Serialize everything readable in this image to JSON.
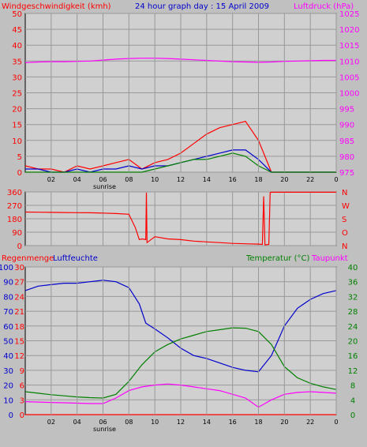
{
  "chart_data": [
    {
      "type": "line",
      "title": "24 hour graph day : 15 April 2009",
      "left_label": "Windgeschwindigkeit (kmh)",
      "right_label": "Luftdruck (hPa)",
      "left_ticks": [
        "0",
        "5",
        "10",
        "15",
        "20",
        "25",
        "30",
        "35",
        "40",
        "45",
        "50"
      ],
      "right_ticks": [
        "975",
        "980",
        "985",
        "990",
        "995",
        "1000",
        "1005",
        "1010",
        "1015",
        "1020",
        "1025"
      ],
      "x_ticks": [
        "02",
        "04",
        "06",
        "08",
        "10",
        "12",
        "14",
        "16",
        "18",
        "20",
        "22",
        "0"
      ],
      "sunrise_label": "sunrise",
      "ylim_left": [
        0,
        50
      ],
      "ylim_right": [
        975,
        1025
      ],
      "xlim": [
        0,
        24
      ],
      "series": [
        {
          "color": "#ff00ff",
          "x": [
            0,
            1,
            2,
            3,
            4,
            5,
            6,
            7,
            8,
            9,
            10,
            11,
            12,
            13,
            14,
            15,
            16,
            17,
            18,
            19,
            20,
            21,
            22,
            23,
            24
          ],
          "values": [
            1009.5,
            1009.7,
            1009.8,
            1009.8,
            1009.9,
            1010,
            1010.3,
            1010.6,
            1010.8,
            1010.9,
            1010.9,
            1010.8,
            1010.6,
            1010.4,
            1010.2,
            1010,
            1009.8,
            1009.7,
            1009.6,
            1009.7,
            1009.9,
            1010,
            1010.1,
            1010.2,
            1010.2
          ]
        },
        {
          "color": "#ff0000",
          "x": [
            0,
            1,
            2,
            3,
            4,
            5,
            6,
            7,
            8,
            9,
            10,
            11,
            12,
            13,
            14,
            15,
            16,
            17,
            18,
            19,
            20,
            21,
            22,
            23,
            24
          ],
          "values": [
            2,
            1,
            1,
            0,
            2,
            1,
            2,
            3,
            4,
            1,
            3,
            4,
            6,
            9,
            12,
            14,
            15,
            16,
            10,
            0,
            0,
            0,
            0,
            0,
            0
          ]
        },
        {
          "color": "#0000cc",
          "x": [
            0,
            1,
            2,
            3,
            4,
            5,
            6,
            7,
            8,
            9,
            10,
            11,
            12,
            13,
            14,
            15,
            16,
            17,
            18,
            19,
            20,
            21,
            22,
            23,
            24
          ],
          "values": [
            1,
            1,
            0,
            0,
            1,
            0,
            1,
            1,
            2,
            1,
            2,
            2,
            3,
            4,
            5,
            6,
            7,
            7,
            4,
            0,
            0,
            0,
            0,
            0,
            0
          ]
        },
        {
          "color": "#008000",
          "x": [
            0,
            1,
            2,
            3,
            4,
            5,
            6,
            7,
            8,
            9,
            10,
            11,
            12,
            13,
            14,
            15,
            16,
            17,
            18,
            19,
            20,
            21,
            22,
            23,
            24
          ],
          "values": [
            0,
            0,
            0,
            0,
            0,
            0,
            0,
            0,
            0,
            0,
            1,
            2,
            3,
            4,
            4,
            5,
            6,
            5,
            2,
            0,
            0,
            0,
            0,
            0,
            0
          ]
        }
      ]
    },
    {
      "type": "line",
      "left_ticks": [
        "0",
        "90",
        "180",
        "270",
        "360"
      ],
      "right_ticks": [
        "N",
        "O",
        "S",
        "W",
        "N"
      ],
      "ylim": [
        0,
        360
      ],
      "xlim": [
        0,
        24
      ],
      "series": [
        {
          "color": "#ff0000",
          "x": [
            0,
            1,
            2,
            3,
            4,
            5,
            6,
            7,
            8,
            8.5,
            8.8,
            9,
            9.3,
            9.35,
            9.4,
            10,
            11,
            12,
            13,
            14,
            15,
            16,
            17,
            18,
            18.3,
            18.4,
            18.5,
            18.8,
            18.9,
            19,
            20,
            21,
            22,
            23,
            24
          ],
          "values": [
            225,
            224,
            223,
            222,
            221,
            220,
            218,
            215,
            210,
            120,
            40,
            45,
            40,
            355,
            20,
            60,
            45,
            40,
            30,
            25,
            20,
            15,
            12,
            10,
            8,
            330,
            5,
            8,
            355,
            358,
            358,
            358,
            358,
            358,
            358
          ]
        }
      ]
    },
    {
      "type": "line",
      "left_label_rain": "Regenmenge",
      "left_label_hum": "Luftfeuchte",
      "right_label_temp": "Temperatur (°C)",
      "right_label_dew": "Taupunkt",
      "rain_ticks": [
        "0",
        "3",
        "6",
        "9",
        "12",
        "15",
        "18",
        "21",
        "24",
        "27",
        "30"
      ],
      "hum_ticks": [
        "0",
        "10",
        "20",
        "30",
        "40",
        "50",
        "60",
        "70",
        "80",
        "90",
        "100"
      ],
      "temp_ticks": [
        "0",
        "4",
        "8",
        "12",
        "16",
        "20",
        "24",
        "28",
        "32",
        "36",
        "40"
      ],
      "x_ticks": [
        "02",
        "04",
        "06",
        "08",
        "10",
        "12",
        "14",
        "16",
        "18",
        "20",
        "22",
        "0"
      ],
      "sunrise_label": "sunrise",
      "xlim": [
        0,
        24
      ],
      "series": [
        {
          "color": "#0000cc",
          "x": [
            0,
            1,
            2,
            3,
            4,
            5,
            6,
            7,
            8,
            8.8,
            9.3,
            10,
            11,
            12,
            13,
            14,
            15,
            16,
            17,
            18,
            19,
            20,
            21,
            22,
            23,
            24
          ],
          "values": [
            84,
            87,
            88,
            89,
            89,
            90,
            91,
            90,
            86,
            75,
            62,
            58,
            52,
            45,
            40,
            38,
            35,
            32,
            30,
            29,
            40,
            60,
            72,
            78,
            82,
            84
          ]
        },
        {
          "color": "#008000",
          "x": [
            0,
            1,
            2,
            3,
            4,
            5,
            6,
            7,
            8,
            9,
            10,
            11,
            12,
            13,
            14,
            15,
            16,
            17,
            18,
            19,
            20,
            21,
            22,
            23,
            24
          ],
          "values": [
            6.2,
            5.8,
            5.4,
            5.1,
            4.8,
            4.6,
            4.5,
            5.5,
            9.0,
            13.5,
            17.0,
            19.0,
            20.5,
            21.5,
            22.5,
            23.0,
            23.5,
            23.4,
            22.5,
            19.0,
            13.0,
            10.0,
            8.5,
            7.5,
            6.8
          ]
        },
        {
          "color": "#ff00ff",
          "x": [
            0,
            1,
            2,
            3,
            4,
            5,
            6,
            7,
            8,
            9,
            10,
            11,
            12,
            13,
            14,
            15,
            16,
            17,
            18,
            19,
            20,
            21,
            22,
            23,
            24
          ],
          "values": [
            3.5,
            3.4,
            3.3,
            3.2,
            3.1,
            3.0,
            3.0,
            4.5,
            6.5,
            7.5,
            8.0,
            8.3,
            8.0,
            7.5,
            7.0,
            6.5,
            5.5,
            4.5,
            2.0,
            4.0,
            5.5,
            6.0,
            6.2,
            6.0,
            5.8
          ]
        },
        {
          "color": "#ff0000",
          "x": [
            0,
            24
          ],
          "values": [
            0,
            0
          ]
        }
      ]
    }
  ]
}
